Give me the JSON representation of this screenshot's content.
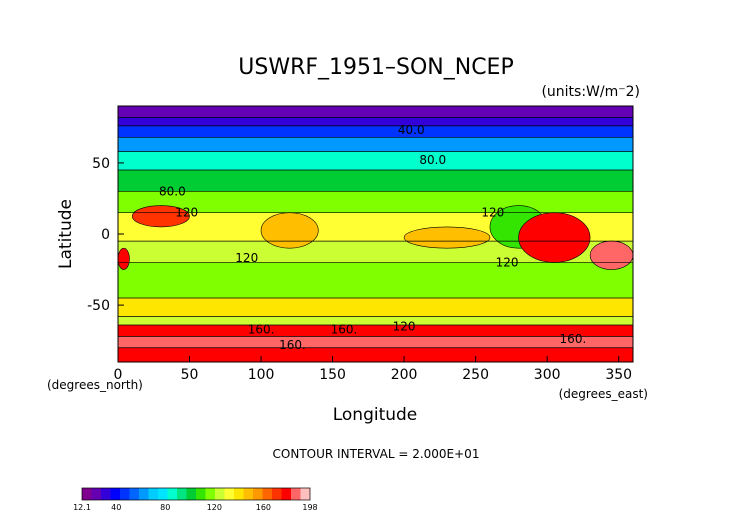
{
  "chart_data": {
    "type": "heatmap",
    "title": "USWRF_1951–SON_NCEP",
    "units": "(units:W/m⁻2)",
    "xlabel": "Longitude",
    "ylabel": "Latitude",
    "xunit": "(degrees_east)",
    "yunit": "(degrees_north)",
    "xlim": [
      0,
      360
    ],
    "ylim": [
      -90,
      90
    ],
    "x_ticks": [
      0,
      50,
      100,
      150,
      200,
      250,
      300,
      350
    ],
    "y_ticks": [
      -50,
      0,
      50
    ],
    "contour_interval": "CONTOUR INTERVAL = 2.000E+01",
    "contour_labels": [
      {
        "text": "40.0",
        "x": 205,
        "y": 73
      },
      {
        "text": "80.0",
        "x": 220,
        "y": 52
      },
      {
        "text": "80.0",
        "x": 38,
        "y": 30
      },
      {
        "text": "120",
        "x": 48,
        "y": 15
      },
      {
        "text": "120",
        "x": 262,
        "y": 15
      },
      {
        "text": "120",
        "x": 90,
        "y": -17
      },
      {
        "text": "120",
        "x": 272,
        "y": -20
      },
      {
        "text": "120",
        "x": 200,
        "y": -65
      },
      {
        "text": "160.",
        "x": 100,
        "y": -67
      },
      {
        "text": "160.",
        "x": 158,
        "y": -67
      },
      {
        "text": "160.",
        "x": 122,
        "y": -78
      },
      {
        "text": "160.",
        "x": 318,
        "y": -74
      }
    ],
    "colorbar": {
      "min": 12.1,
      "max": 198,
      "tick_labels": [
        "12.1",
        "40",
        "80",
        "120",
        "160",
        "198"
      ],
      "colors": [
        "#80008f",
        "#6600b3",
        "#3300d9",
        "#0000ff",
        "#0033ff",
        "#0066ff",
        "#0099ff",
        "#00ccff",
        "#00e5ff",
        "#00ffcc",
        "#00e57f",
        "#00cc33",
        "#33e500",
        "#80ff00",
        "#ccff33",
        "#ffff33",
        "#ffe600",
        "#ffbf00",
        "#ff9900",
        "#ff6600",
        "#ff3300",
        "#ff0000",
        "#ff6666",
        "#ffbfbf"
      ]
    },
    "latitude_bands": [
      {
        "lat_from": 90,
        "lat_to": 82,
        "value": 20
      },
      {
        "lat_from": 82,
        "lat_to": 76,
        "value": 30
      },
      {
        "lat_from": 76,
        "lat_to": 68,
        "value": 45
      },
      {
        "lat_from": 68,
        "lat_to": 58,
        "value": 65
      },
      {
        "lat_from": 58,
        "lat_to": 45,
        "value": 85
      },
      {
        "lat_from": 45,
        "lat_to": 30,
        "value": 105
      },
      {
        "lat_from": 30,
        "lat_to": 15,
        "value": 120
      },
      {
        "lat_from": 15,
        "lat_to": -5,
        "value": 135
      },
      {
        "lat_from": -5,
        "lat_to": -20,
        "value": 125
      },
      {
        "lat_from": -20,
        "lat_to": -45,
        "value": 120
      },
      {
        "lat_from": -45,
        "lat_to": -58,
        "value": 140
      },
      {
        "lat_from": -58,
        "lat_to": -64,
        "value": 125
      },
      {
        "lat_from": -64,
        "lat_to": -72,
        "value": 180
      },
      {
        "lat_from": -72,
        "lat_to": -80,
        "value": 190
      },
      {
        "lat_from": -80,
        "lat_to": -90,
        "value": 175
      }
    ],
    "regions": [
      {
        "name": "",
        "lon": [
          10,
          50
        ],
        "lat": [
          20,
          5
        ],
        "value": 170
      },
      {
        "name": "",
        "lon": [
          260,
          300
        ],
        "lat": [
          20,
          -10
        ],
        "value": 110
      },
      {
        "name": "",
        "lon": [
          280,
          330
        ],
        "lat": [
          15,
          -20
        ],
        "value": 175
      },
      {
        "name": "",
        "lon": [
          100,
          140
        ],
        "lat": [
          15,
          -10
        ],
        "value": 145
      },
      {
        "name": "",
        "lon": [
          200,
          260
        ],
        "lat": [
          5,
          -10
        ],
        "value": 150
      },
      {
        "name": "",
        "lon": [
          330,
          360
        ],
        "lat": [
          -5,
          -25
        ],
        "value": 185
      },
      {
        "name": "",
        "lon": [
          0,
          8
        ],
        "lat": [
          -10,
          -25
        ],
        "value": 175
      }
    ]
  }
}
